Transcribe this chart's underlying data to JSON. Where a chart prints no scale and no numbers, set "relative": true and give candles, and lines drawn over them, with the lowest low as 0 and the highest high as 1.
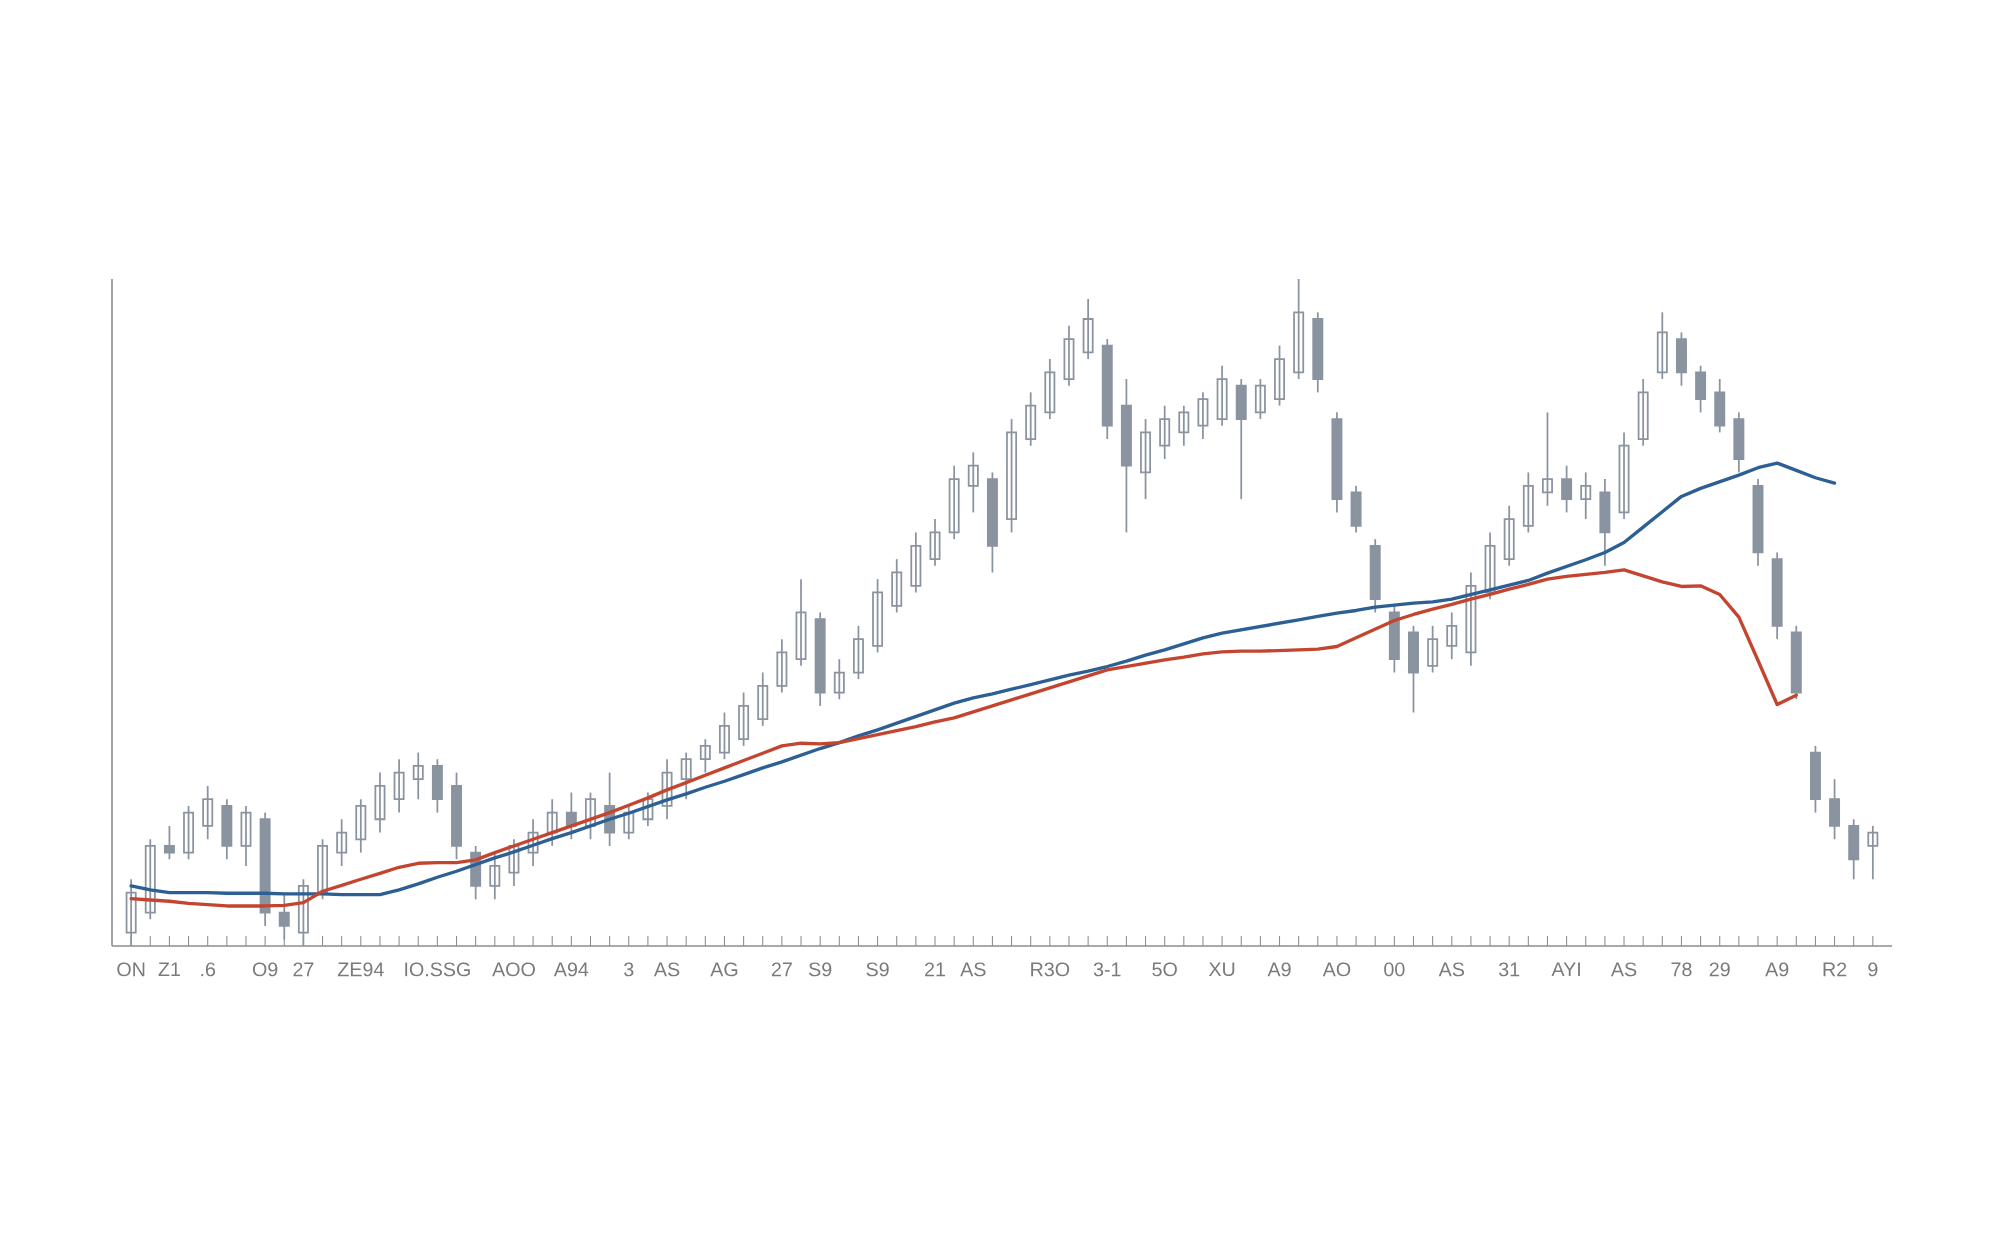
{
  "chart_data": {
    "type": "candlestick",
    "relative": true,
    "tick_labels": "x",
    "color": "#8a93a0",
    "categories": [
      "ON",
      null,
      "Z1",
      null,
      ".6",
      null,
      null,
      "O9",
      null,
      "27",
      null,
      null,
      "ZE94",
      null,
      null,
      null,
      "IO.SSG",
      null,
      null,
      null,
      "AOO",
      null,
      null,
      "A94",
      null,
      null,
      "3",
      null,
      "AS",
      null,
      null,
      "AG",
      null,
      null,
      "27",
      null,
      "S9",
      null,
      null,
      "S9",
      null,
      null,
      "21",
      null,
      "AS",
      null,
      null,
      null,
      "R3O",
      null,
      null,
      "3-1",
      null,
      null,
      "5O",
      null,
      null,
      "XU",
      null,
      null,
      "A9",
      null,
      null,
      "AO",
      null,
      null,
      "00",
      null,
      null,
      "AS",
      null,
      null,
      "31",
      null,
      null,
      "AYI",
      null,
      null,
      "AS",
      null,
      null,
      "78",
      null,
      "29",
      null,
      null,
      "A9",
      null,
      null,
      "R2",
      null,
      "9"
    ],
    "ohlc": [
      [
        0.02,
        0.1,
        0.0,
        0.08
      ],
      [
        0.05,
        0.16,
        0.04,
        0.15
      ],
      [
        0.15,
        0.18,
        0.13,
        0.14
      ],
      [
        0.14,
        0.21,
        0.13,
        0.2
      ],
      [
        0.18,
        0.24,
        0.16,
        0.22
      ],
      [
        0.21,
        0.22,
        0.13,
        0.15
      ],
      [
        0.15,
        0.21,
        0.12,
        0.2
      ],
      [
        0.19,
        0.2,
        0.03,
        0.05
      ],
      [
        0.05,
        0.08,
        0.01,
        0.03
      ],
      [
        0.02,
        0.1,
        0.0,
        0.09
      ],
      [
        0.08,
        0.16,
        0.07,
        0.15
      ],
      [
        0.14,
        0.19,
        0.12,
        0.17
      ],
      [
        0.16,
        0.22,
        0.14,
        0.21
      ],
      [
        0.19,
        0.26,
        0.17,
        0.24
      ],
      [
        0.22,
        0.28,
        0.2,
        0.26
      ],
      [
        0.25,
        0.29,
        0.22,
        0.27
      ],
      [
        0.27,
        0.28,
        0.2,
        0.22
      ],
      [
        0.24,
        0.26,
        0.13,
        0.15
      ],
      [
        0.14,
        0.15,
        0.07,
        0.09
      ],
      [
        0.09,
        0.14,
        0.07,
        0.12
      ],
      [
        0.11,
        0.16,
        0.09,
        0.15
      ],
      [
        0.14,
        0.19,
        0.12,
        0.17
      ],
      [
        0.17,
        0.22,
        0.15,
        0.2
      ],
      [
        0.2,
        0.23,
        0.16,
        0.18
      ],
      [
        0.18,
        0.23,
        0.16,
        0.22
      ],
      [
        0.21,
        0.26,
        0.15,
        0.17
      ],
      [
        0.17,
        0.21,
        0.16,
        0.2
      ],
      [
        0.19,
        0.23,
        0.18,
        0.22
      ],
      [
        0.21,
        0.28,
        0.19,
        0.26
      ],
      [
        0.25,
        0.29,
        0.22,
        0.28
      ],
      [
        0.28,
        0.31,
        0.26,
        0.3
      ],
      [
        0.29,
        0.35,
        0.28,
        0.33
      ],
      [
        0.31,
        0.38,
        0.3,
        0.36
      ],
      [
        0.34,
        0.41,
        0.33,
        0.39
      ],
      [
        0.39,
        0.46,
        0.38,
        0.44
      ],
      [
        0.43,
        0.55,
        0.42,
        0.5
      ],
      [
        0.49,
        0.5,
        0.36,
        0.38
      ],
      [
        0.38,
        0.43,
        0.37,
        0.41
      ],
      [
        0.41,
        0.48,
        0.4,
        0.46
      ],
      [
        0.45,
        0.55,
        0.44,
        0.53
      ],
      [
        0.51,
        0.58,
        0.5,
        0.56
      ],
      [
        0.54,
        0.62,
        0.53,
        0.6
      ],
      [
        0.58,
        0.64,
        0.57,
        0.62
      ],
      [
        0.62,
        0.72,
        0.61,
        0.7
      ],
      [
        0.69,
        0.74,
        0.65,
        0.72
      ],
      [
        0.7,
        0.71,
        0.56,
        0.6
      ],
      [
        0.64,
        0.79,
        0.62,
        0.77
      ],
      [
        0.76,
        0.83,
        0.75,
        0.81
      ],
      [
        0.8,
        0.88,
        0.79,
        0.86
      ],
      [
        0.85,
        0.93,
        0.84,
        0.91
      ],
      [
        0.89,
        0.97,
        0.88,
        0.94
      ],
      [
        0.9,
        0.91,
        0.76,
        0.78
      ],
      [
        0.81,
        0.85,
        0.62,
        0.72
      ],
      [
        0.71,
        0.79,
        0.67,
        0.77
      ],
      [
        0.75,
        0.81,
        0.73,
        0.79
      ],
      [
        0.77,
        0.81,
        0.75,
        0.8
      ],
      [
        0.78,
        0.83,
        0.76,
        0.82
      ],
      [
        0.79,
        0.87,
        0.78,
        0.85
      ],
      [
        0.84,
        0.85,
        0.67,
        0.79
      ],
      [
        0.8,
        0.85,
        0.79,
        0.84
      ],
      [
        0.82,
        0.9,
        0.81,
        0.88
      ],
      [
        0.86,
        1.0,
        0.85,
        0.95
      ],
      [
        0.94,
        0.95,
        0.83,
        0.85
      ],
      [
        0.79,
        0.8,
        0.65,
        0.67
      ],
      [
        0.68,
        0.69,
        0.62,
        0.63
      ],
      [
        0.6,
        0.61,
        0.5,
        0.52
      ],
      [
        0.5,
        0.51,
        0.41,
        0.43
      ],
      [
        0.47,
        0.48,
        0.35,
        0.41
      ],
      [
        0.42,
        0.48,
        0.41,
        0.46
      ],
      [
        0.45,
        0.5,
        0.43,
        0.48
      ],
      [
        0.44,
        0.56,
        0.42,
        0.54
      ],
      [
        0.53,
        0.62,
        0.52,
        0.6
      ],
      [
        0.58,
        0.66,
        0.57,
        0.64
      ],
      [
        0.63,
        0.71,
        0.62,
        0.69
      ],
      [
        0.68,
        0.8,
        0.66,
        0.7
      ],
      [
        0.7,
        0.72,
        0.65,
        0.67
      ],
      [
        0.67,
        0.71,
        0.64,
        0.69
      ],
      [
        0.68,
        0.7,
        0.57,
        0.62
      ],
      [
        0.65,
        0.77,
        0.64,
        0.75
      ],
      [
        0.76,
        0.85,
        0.75,
        0.83
      ],
      [
        0.86,
        0.95,
        0.85,
        0.92
      ],
      [
        0.91,
        0.92,
        0.84,
        0.86
      ],
      [
        0.86,
        0.87,
        0.8,
        0.82
      ],
      [
        0.83,
        0.85,
        0.77,
        0.78
      ],
      [
        0.79,
        0.8,
        0.71,
        0.73
      ],
      [
        0.69,
        0.7,
        0.57,
        0.59
      ],
      [
        0.58,
        0.59,
        0.46,
        0.48
      ],
      [
        0.47,
        0.48,
        0.37,
        0.38
      ],
      [
        0.29,
        0.3,
        0.2,
        0.22
      ],
      [
        0.22,
        0.25,
        0.16,
        0.18
      ],
      [
        0.18,
        0.19,
        0.1,
        0.13
      ],
      [
        0.15,
        0.18,
        0.1,
        0.17
      ]
    ],
    "series": [
      {
        "type": "line",
        "color": "#2c5f94",
        "values": [
          0.09,
          0.084,
          0.08,
          0.08,
          0.08,
          0.079,
          0.079,
          0.079,
          0.078,
          0.078,
          0.078,
          0.077,
          0.077,
          0.077,
          0.084,
          0.093,
          0.103,
          0.112,
          0.122,
          0.132,
          0.141,
          0.151,
          0.161,
          0.17,
          0.18,
          0.19,
          0.199,
          0.209,
          0.219,
          0.228,
          0.238,
          0.247,
          0.257,
          0.267,
          0.276,
          0.286,
          0.296,
          0.305,
          0.315,
          0.324,
          0.334,
          0.344,
          0.354,
          0.364,
          0.372,
          0.378,
          0.385,
          0.392,
          0.399,
          0.406,
          0.412,
          0.419,
          0.427,
          0.436,
          0.444,
          0.453,
          0.462,
          0.469,
          0.474,
          0.479,
          0.484,
          0.489,
          0.494,
          0.499,
          0.503,
          0.508,
          0.511,
          0.514,
          0.516,
          0.52,
          0.527,
          0.534,
          0.541,
          0.548,
          0.559,
          0.569,
          0.579,
          0.59,
          0.605,
          0.628,
          0.651,
          0.674,
          0.686,
          0.696,
          0.706,
          0.717,
          0.724,
          0.713,
          0.702,
          0.694,
          null,
          null
        ]
      },
      {
        "type": "line",
        "color": "#c4452f",
        "values": [
          0.071,
          0.069,
          0.067,
          0.064,
          0.062,
          0.06,
          0.06,
          0.06,
          0.061,
          0.065,
          0.082,
          0.091,
          0.1,
          0.109,
          0.118,
          0.124,
          0.125,
          0.125,
          0.129,
          0.14,
          0.15,
          0.16,
          0.17,
          0.18,
          0.19,
          0.2,
          0.211,
          0.222,
          0.234,
          0.245,
          0.256,
          0.267,
          0.278,
          0.289,
          0.3,
          0.304,
          0.303,
          0.305,
          0.311,
          0.317,
          0.323,
          0.329,
          0.336,
          0.342,
          0.351,
          0.36,
          0.369,
          0.378,
          0.387,
          0.396,
          0.405,
          0.414,
          0.419,
          0.424,
          0.429,
          0.433,
          0.438,
          0.441,
          0.442,
          0.442,
          0.443,
          0.444,
          0.445,
          0.449,
          0.462,
          0.475,
          0.488,
          0.497,
          0.505,
          0.512,
          0.52,
          0.527,
          0.535,
          0.542,
          0.55,
          0.554,
          0.557,
          0.56,
          0.564,
          0.555,
          0.546,
          0.539,
          0.54,
          0.527,
          0.493,
          0.428,
          0.362,
          0.376,
          null,
          null,
          null,
          null
        ]
      }
    ]
  }
}
